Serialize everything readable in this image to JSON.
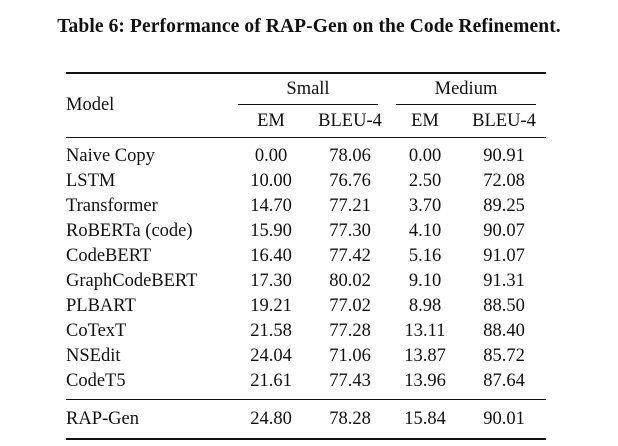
{
  "caption": "Table 6: Performance of RAP-Gen on the Code Refinement.",
  "table": {
    "model_header": "Model",
    "groups": [
      "Small",
      "Medium"
    ],
    "subheaders": [
      "EM",
      "BLEU-4",
      "EM",
      "BLEU-4"
    ],
    "rows": [
      {
        "model": "Naive Copy",
        "values": [
          "0.00",
          "78.06",
          "0.00",
          "90.91"
        ]
      },
      {
        "model": "LSTM",
        "values": [
          "10.00",
          "76.76",
          "2.50",
          "72.08"
        ]
      },
      {
        "model": "Transformer",
        "values": [
          "14.70",
          "77.21",
          "3.70",
          "89.25"
        ]
      },
      {
        "model": "RoBERTa (code)",
        "values": [
          "15.90",
          "77.30",
          "4.10",
          "90.07"
        ]
      },
      {
        "model": "CodeBERT",
        "values": [
          "16.40",
          "77.42",
          "5.16",
          "91.07"
        ]
      },
      {
        "model": "GraphCodeBERT",
        "values": [
          "17.30",
          "80.02",
          "9.10",
          "91.31"
        ]
      },
      {
        "model": "PLBART",
        "values": [
          "19.21",
          "77.02",
          "8.98",
          "88.50"
        ]
      },
      {
        "model": "CoTexT",
        "values": [
          "21.58",
          "77.28",
          "13.11",
          "88.40"
        ]
      },
      {
        "model": "NSEdit",
        "values": [
          "24.04",
          "71.06",
          "13.87",
          "85.72"
        ]
      },
      {
        "model": "CodeT5",
        "values": [
          "21.61",
          "77.43",
          "13.96",
          "87.64"
        ]
      }
    ],
    "final_row": {
      "model": "RAP-Gen",
      "values": [
        "24.80",
        "78.28",
        "15.84",
        "90.01"
      ],
      "bold": [
        true,
        false,
        true,
        false
      ]
    }
  }
}
